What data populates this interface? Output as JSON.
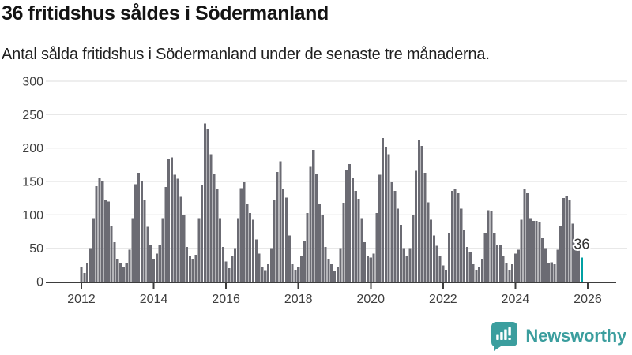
{
  "header": {
    "title": "36 fritidshus såldes i Södermanland",
    "subtitle": "Antal sålda fritidshus i Södermanland under de senaste tre månaderna."
  },
  "chart_data": {
    "type": "bar",
    "title": "36 fritidshus såldes i Södermanland",
    "subtitle": "Antal sålda fritidshus i Södermanland under de senaste tre månaderna.",
    "unit": "antal sålda fritidshus (rullande tre månader)",
    "frequency": "monthly",
    "start_month": "2012-01",
    "end_month": "2025-11",
    "values": [
      21,
      13,
      28,
      50,
      95,
      143,
      155,
      150,
      122,
      120,
      83,
      59,
      34,
      27,
      22,
      28,
      48,
      95,
      146,
      163,
      150,
      122,
      82,
      55,
      34,
      42,
      55,
      95,
      142,
      183,
      186,
      160,
      154,
      127,
      100,
      52,
      38,
      34,
      40,
      95,
      145,
      237,
      229,
      191,
      162,
      138,
      95,
      52,
      30,
      20,
      38,
      50,
      95,
      140,
      149,
      117,
      103,
      93,
      63,
      42,
      22,
      17,
      26,
      50,
      122,
      164,
      180,
      138,
      126,
      69,
      26,
      18,
      22,
      38,
      60,
      103,
      172,
      197,
      161,
      117,
      100,
      52,
      34,
      26,
      16,
      22,
      50,
      118,
      168,
      176,
      156,
      136,
      124,
      95,
      59,
      38,
      36,
      42,
      103,
      160,
      215,
      202,
      191,
      149,
      136,
      109,
      85,
      50,
      39,
      50,
      99,
      166,
      212,
      203,
      163,
      119,
      93,
      69,
      54,
      38,
      24,
      18,
      73,
      136,
      139,
      132,
      109,
      77,
      52,
      44,
      26,
      18,
      22,
      34,
      73,
      107,
      105,
      73,
      55,
      55,
      38,
      28,
      18,
      26,
      42,
      48,
      93,
      138,
      132,
      95,
      91,
      91,
      89,
      65,
      50,
      28,
      29,
      26,
      48,
      84,
      125,
      129,
      123,
      87,
      62,
      48,
      36
    ],
    "highlight": {
      "index": 166,
      "value": 36,
      "label": "36",
      "color": "#00a0a3"
    },
    "bar_color": "#6b6b73",
    "grid": true,
    "gridline_color": "#e8e8e8",
    "axis_color": "#3d3d3d",
    "label_color": "#3d3d3d",
    "ylim": [
      0,
      300
    ],
    "y_ticks": [
      0,
      50,
      100,
      150,
      200,
      250,
      300
    ],
    "x_ticks": [
      "2012",
      "2014",
      "2016",
      "2018",
      "2020",
      "2022",
      "2024",
      "2026"
    ],
    "legend": "none"
  },
  "footer": {
    "brand": "Newsworthy",
    "brand_color": "#3b9e9e"
  }
}
